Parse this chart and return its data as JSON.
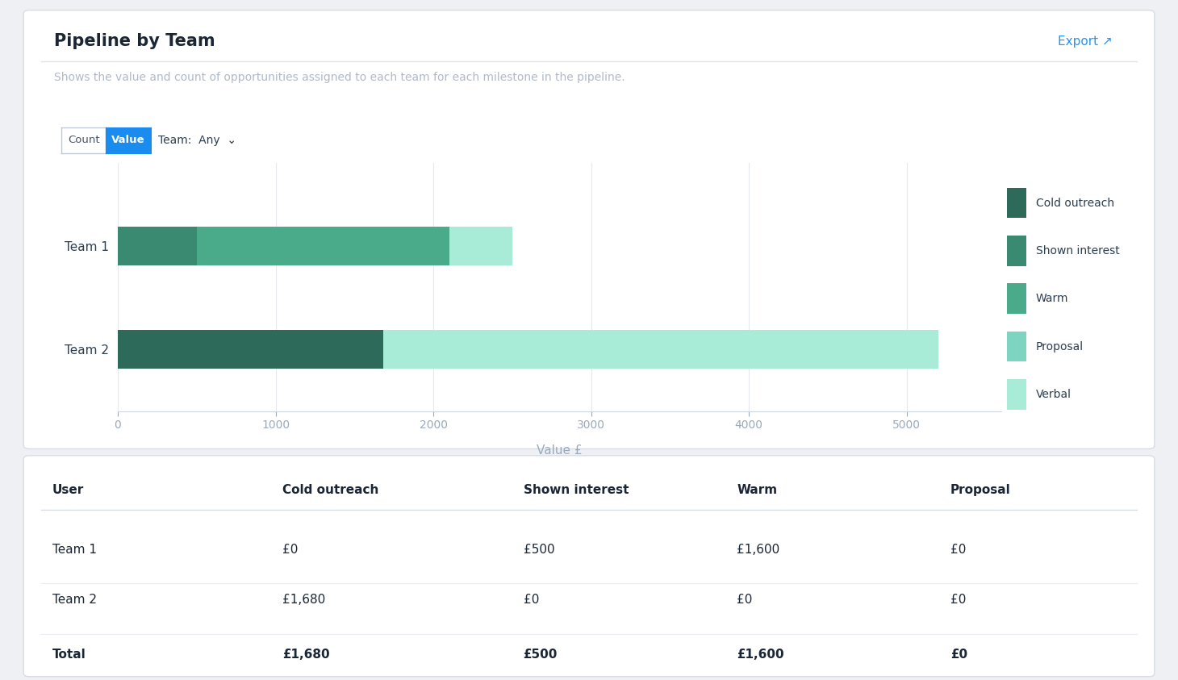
{
  "title": "Pipeline by Team",
  "subtitle": "Shows the value and count of opportunities assigned to each team for each milestone in the pipeline.",
  "xlabel": "Value £",
  "teams": [
    "Team 1",
    "Team 2"
  ],
  "segments": [
    "Cold outreach",
    "Shown interest",
    "Warm",
    "Proposal",
    "Verbal"
  ],
  "colors": [
    "#2d6a5a",
    "#3a8a72",
    "#4aab8a",
    "#7dd4c0",
    "#a8ecd8"
  ],
  "values": [
    [
      0,
      500,
      1600,
      0,
      400
    ],
    [
      1680,
      0,
      0,
      0,
      3520
    ]
  ],
  "xlim": [
    0,
    5600
  ],
  "xticks": [
    0,
    1000,
    2000,
    3000,
    4000,
    5000
  ],
  "background_color": "#eef0f4",
  "panel_color": "#ffffff",
  "table_headers": [
    "User",
    "Cold outreach",
    "Shown interest",
    "Warm",
    "Proposal"
  ],
  "table_data": [
    [
      "Team 1",
      "£0",
      "£500",
      "£1,600",
      "£0"
    ],
    [
      "Team 2",
      "£1,680",
      "£0",
      "£0",
      "£0"
    ],
    [
      "Total",
      "£1,680",
      "£500",
      "£1,600",
      "£0"
    ]
  ],
  "bar_height": 0.38,
  "fig_width": 14.6,
  "fig_height": 8.43
}
